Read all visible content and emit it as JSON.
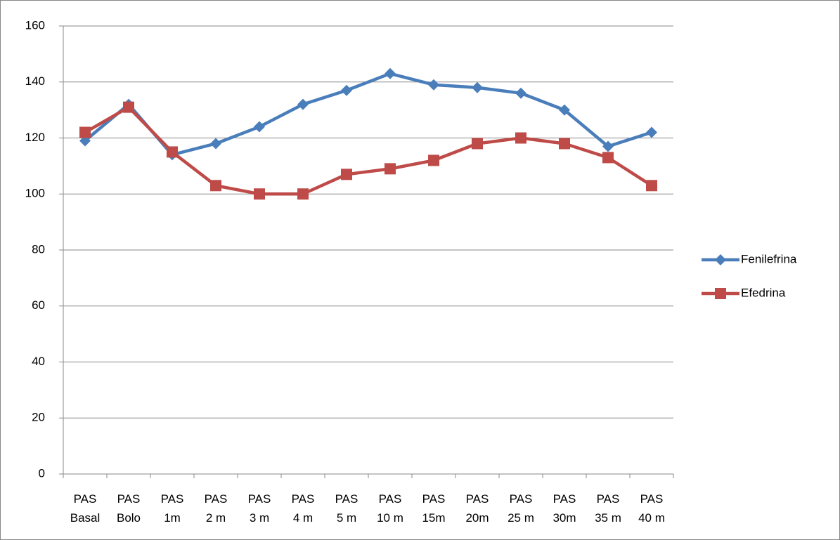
{
  "chart_data": {
    "type": "line",
    "categories": [
      "PAS Basal",
      "PAS Bolo",
      "PAS 1m",
      "PAS 2 m",
      "PAS 3 m",
      "PAS 4 m",
      "PAS 5 m",
      "PAS 10 m",
      "PAS 15m",
      "PAS 20m",
      "PAS 25 m",
      "PAS 30m",
      "PAS 35 m",
      "PAS 40 m"
    ],
    "series": [
      {
        "name": "Fenilefrina",
        "color": "#4a7ebb",
        "marker": "diamond",
        "values": [
          119,
          132,
          114,
          118,
          124,
          132,
          137,
          143,
          139,
          138,
          136,
          130,
          117,
          122
        ]
      },
      {
        "name": "Efedrina",
        "color": "#be4b48",
        "marker": "square",
        "values": [
          122,
          131,
          115,
          103,
          100,
          100,
          107,
          109,
          112,
          118,
          120,
          118,
          113,
          103
        ]
      }
    ],
    "ylim": [
      0,
      160
    ],
    "yticks": [
      0,
      20,
      40,
      60,
      80,
      100,
      120,
      140,
      160
    ],
    "grid": true,
    "legend": "right"
  }
}
